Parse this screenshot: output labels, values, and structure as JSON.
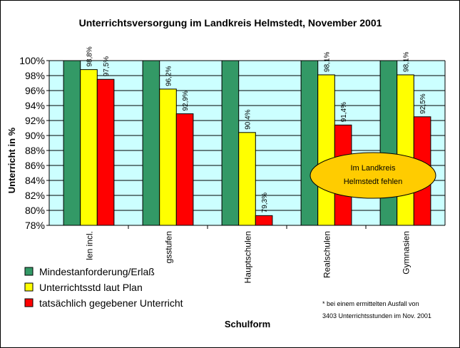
{
  "chart_data": {
    "type": "bar",
    "title": "Unterrichtsversorgung im Landkreis Helmstedt, November 2001",
    "xlabel": "Schulform",
    "ylabel": "Unterricht in %",
    "ylim": [
      78,
      100
    ],
    "yticks": [
      "78%",
      "80%",
      "82%",
      "84%",
      "86%",
      "88%",
      "90%",
      "92%",
      "94%",
      "96%",
      "98%",
      "100%"
    ],
    "categories": [
      "len incl.",
      "gsstufen",
      "Hauptschulen",
      "Realschulen",
      "Gymnasien"
    ],
    "series": [
      {
        "name": "Mindestanforderung/Erlaß",
        "color": "#339966",
        "values": [
          100,
          100,
          100,
          100,
          100
        ],
        "labels": [
          "",
          "",
          "",
          "",
          ""
        ]
      },
      {
        "name": "Unterrichtsstd laut Plan",
        "color": "#ffff00",
        "values": [
          98.8,
          96.2,
          90.4,
          98.1,
          98.1
        ],
        "labels": [
          "98,8%",
          "96,2%",
          "90,4%",
          "98,1%",
          "98,1%"
        ]
      },
      {
        "name": "tatsächlich gegebener Unterricht",
        "color": "#ff0000",
        "values": [
          97.5,
          92.9,
          79.3,
          91.4,
          92.5
        ],
        "labels": [
          "97,5%",
          "92,9%",
          "79,3%",
          "91,4%",
          "92,5%"
        ]
      }
    ],
    "grid": true,
    "plot_background": "#ccffff",
    "legend_position": "bottom-left",
    "annotation": {
      "lines": [
        "Im Landkreis",
        "Helmstedt fehlen"
      ],
      "fill": "#ffcc00"
    },
    "footnote": {
      "lines": [
        "* bei einem ermittelten Ausfall von",
        "3403 Unterrichtsstunden im Nov. 2001"
      ]
    }
  }
}
